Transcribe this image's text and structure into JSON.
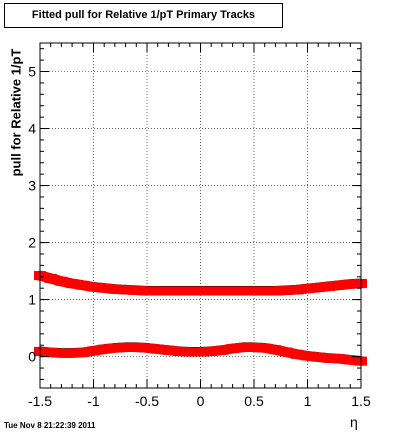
{
  "header": {
    "title": "Fitted pull for Relative 1/pT  Primary Tracks",
    "timestamp": "Tue Nov  8 21:22:39 2011"
  },
  "chart_data": {
    "type": "scatter",
    "title": "Fitted pull for Relative 1/pT  Primary Tracks",
    "xlabel": "η",
    "ylabel": "pull for Relative 1/pT",
    "xlim": [
      -1.5,
      1.5
    ],
    "ylim": [
      -0.55,
      5.5
    ],
    "grid": true,
    "x_ticks": [
      -1.5,
      -1,
      -0.5,
      0,
      0.5,
      1,
      1.5
    ],
    "x_tick_labels": [
      "-1.5",
      "-1",
      "-0.5",
      "0",
      "0.5",
      "1",
      "1.5"
    ],
    "y_ticks": [
      0,
      1,
      2,
      3,
      4,
      5
    ],
    "y_tick_labels": [
      "0",
      "1",
      "2",
      "3",
      "4",
      "5"
    ],
    "series": [
      {
        "color": "#ff0000",
        "x": [
          -1.5,
          -1.4,
          -1.3,
          -1.2,
          -1.1,
          -1.0,
          -0.9,
          -0.8,
          -0.7,
          -0.6,
          -0.5,
          -0.4,
          -0.3,
          -0.2,
          -0.1,
          0.0,
          0.1,
          0.2,
          0.3,
          0.4,
          0.5,
          0.6,
          0.7,
          0.8,
          0.9,
          1.0,
          1.1,
          1.2,
          1.3,
          1.4,
          1.5
        ],
        "y": [
          1.43,
          1.38,
          1.33,
          1.29,
          1.26,
          1.23,
          1.21,
          1.19,
          1.18,
          1.17,
          1.16,
          1.16,
          1.16,
          1.16,
          1.16,
          1.16,
          1.16,
          1.16,
          1.16,
          1.16,
          1.16,
          1.16,
          1.16,
          1.17,
          1.18,
          1.2,
          1.22,
          1.24,
          1.26,
          1.28,
          1.29
        ]
      },
      {
        "color": "#ff0000",
        "x": [
          -1.5,
          -1.4,
          -1.3,
          -1.2,
          -1.1,
          -1.0,
          -0.9,
          -0.8,
          -0.7,
          -0.6,
          -0.5,
          -0.4,
          -0.3,
          -0.2,
          -0.1,
          0.0,
          0.1,
          0.2,
          0.3,
          0.4,
          0.5,
          0.6,
          0.7,
          0.8,
          0.9,
          1.0,
          1.1,
          1.2,
          1.3,
          1.4,
          1.5
        ],
        "y": [
          0.1,
          0.08,
          0.07,
          0.07,
          0.08,
          0.11,
          0.14,
          0.16,
          0.17,
          0.17,
          0.16,
          0.14,
          0.12,
          0.1,
          0.09,
          0.09,
          0.1,
          0.12,
          0.15,
          0.17,
          0.17,
          0.16,
          0.13,
          0.09,
          0.05,
          0.02,
          0.0,
          -0.02,
          -0.03,
          -0.05,
          -0.07
        ]
      }
    ]
  }
}
